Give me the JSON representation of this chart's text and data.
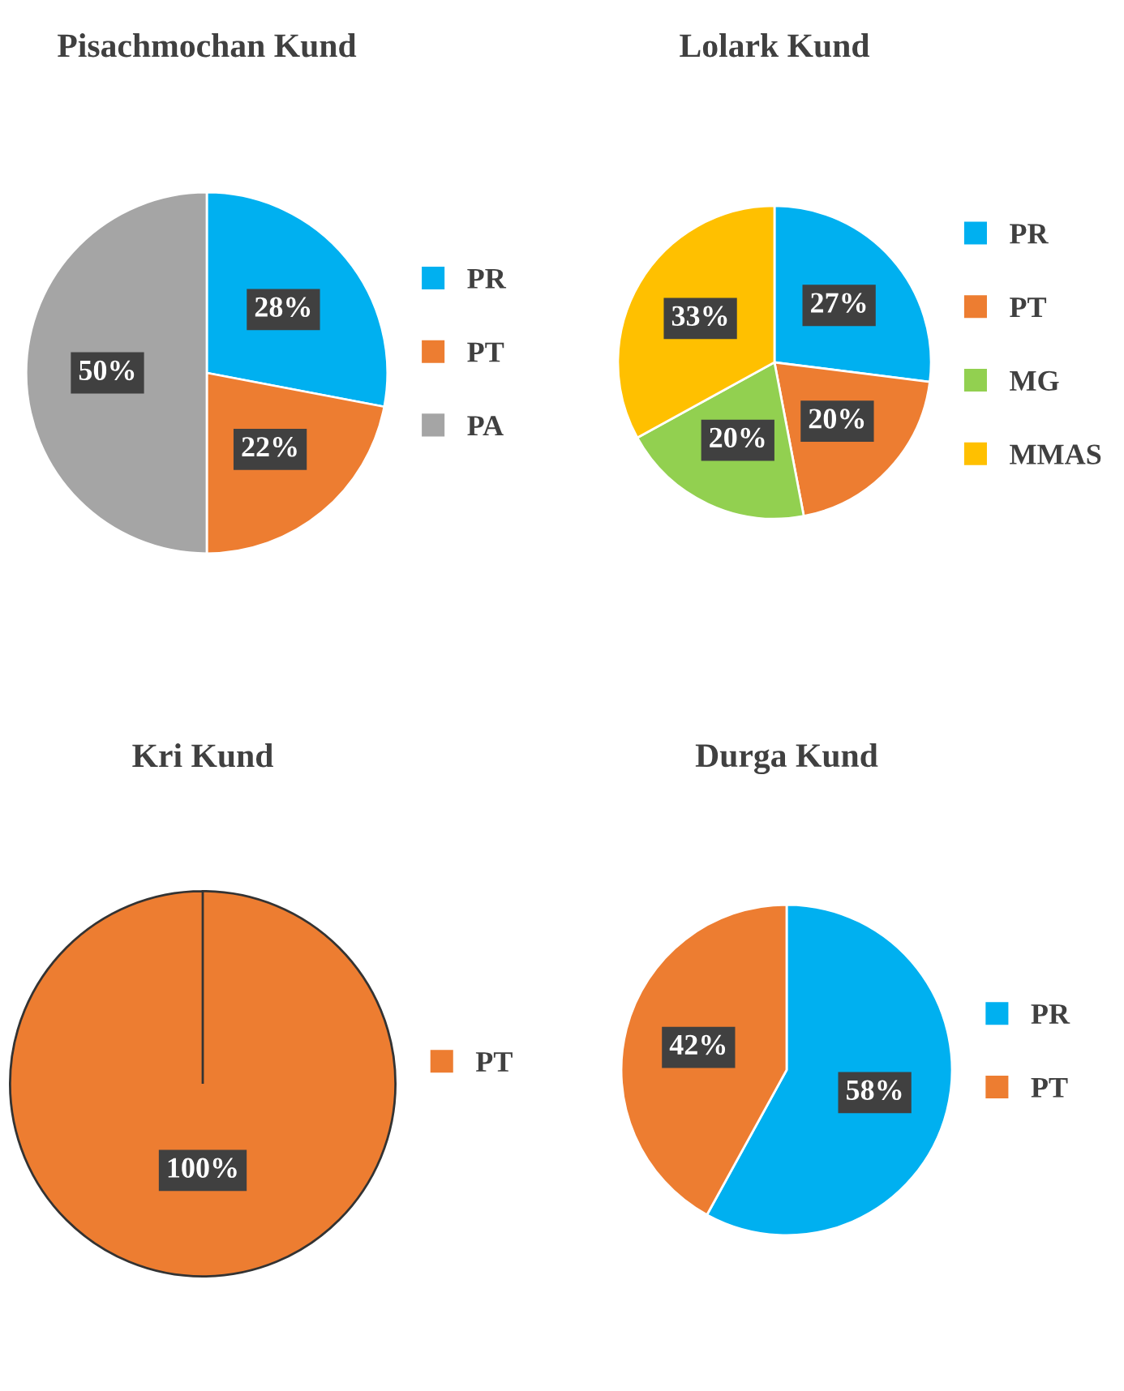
{
  "chart_data": [
    {
      "type": "pie",
      "title": "Pisachmochan Kund",
      "categories": [
        "PR",
        "PT",
        "PA"
      ],
      "values": [
        28,
        22,
        50
      ],
      "colors": [
        "#00b0f0",
        "#ed7d31",
        "#a5a5a5"
      ],
      "value_labels": [
        "28%",
        "22%",
        "50%"
      ],
      "legend": "right"
    },
    {
      "type": "pie",
      "title": "Lolark Kund",
      "categories": [
        "PR",
        "PT",
        "MG",
        "MMAS"
      ],
      "values": [
        27,
        20,
        20,
        33
      ],
      "colors": [
        "#00b0f0",
        "#ed7d31",
        "#92d050",
        "#ffc000"
      ],
      "value_labels": [
        "27%",
        "20%",
        "20%",
        "33%"
      ],
      "legend": "right"
    },
    {
      "type": "pie",
      "title": "Kri Kund",
      "categories": [
        "PT"
      ],
      "values": [
        100
      ],
      "colors": [
        "#ed7d31"
      ],
      "value_labels": [
        "100%"
      ],
      "legend": "right"
    },
    {
      "type": "pie",
      "title": "Durga Kund",
      "categories": [
        "PR",
        "PT"
      ],
      "values": [
        58,
        42
      ],
      "colors": [
        "#00b0f0",
        "#ed7d31"
      ],
      "value_labels": [
        "58%",
        "42%"
      ],
      "legend": "right"
    }
  ]
}
